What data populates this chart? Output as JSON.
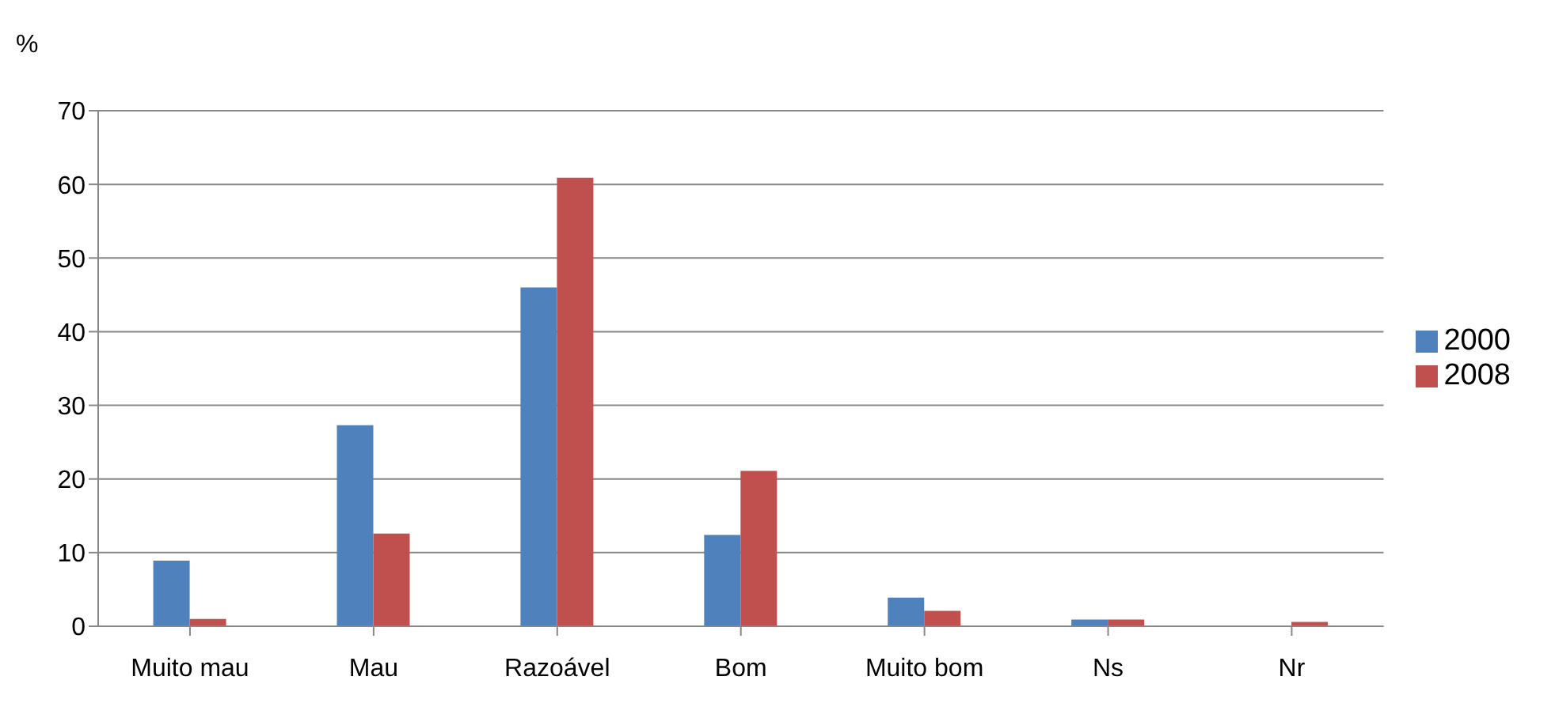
{
  "chart_data": {
    "type": "bar",
    "ylabel": "%",
    "categories": [
      "Muito mau",
      "Mau",
      "Razoável",
      "Bom",
      "Muito bom",
      "Ns",
      "Nr"
    ],
    "series": [
      {
        "name": "2000",
        "color": "#4f81bd",
        "values": [
          8.9,
          27.3,
          46,
          12.4,
          3.9,
          0.9,
          0
        ]
      },
      {
        "name": "2008",
        "color": "#c0504d",
        "values": [
          1,
          12.6,
          60.9,
          21.1,
          2.1,
          0.9,
          0.6
        ]
      }
    ],
    "ylim": [
      0,
      70
    ],
    "yticks": [
      0,
      10,
      20,
      30,
      40,
      50,
      60,
      70
    ],
    "grid": "y",
    "legend": "right"
  }
}
